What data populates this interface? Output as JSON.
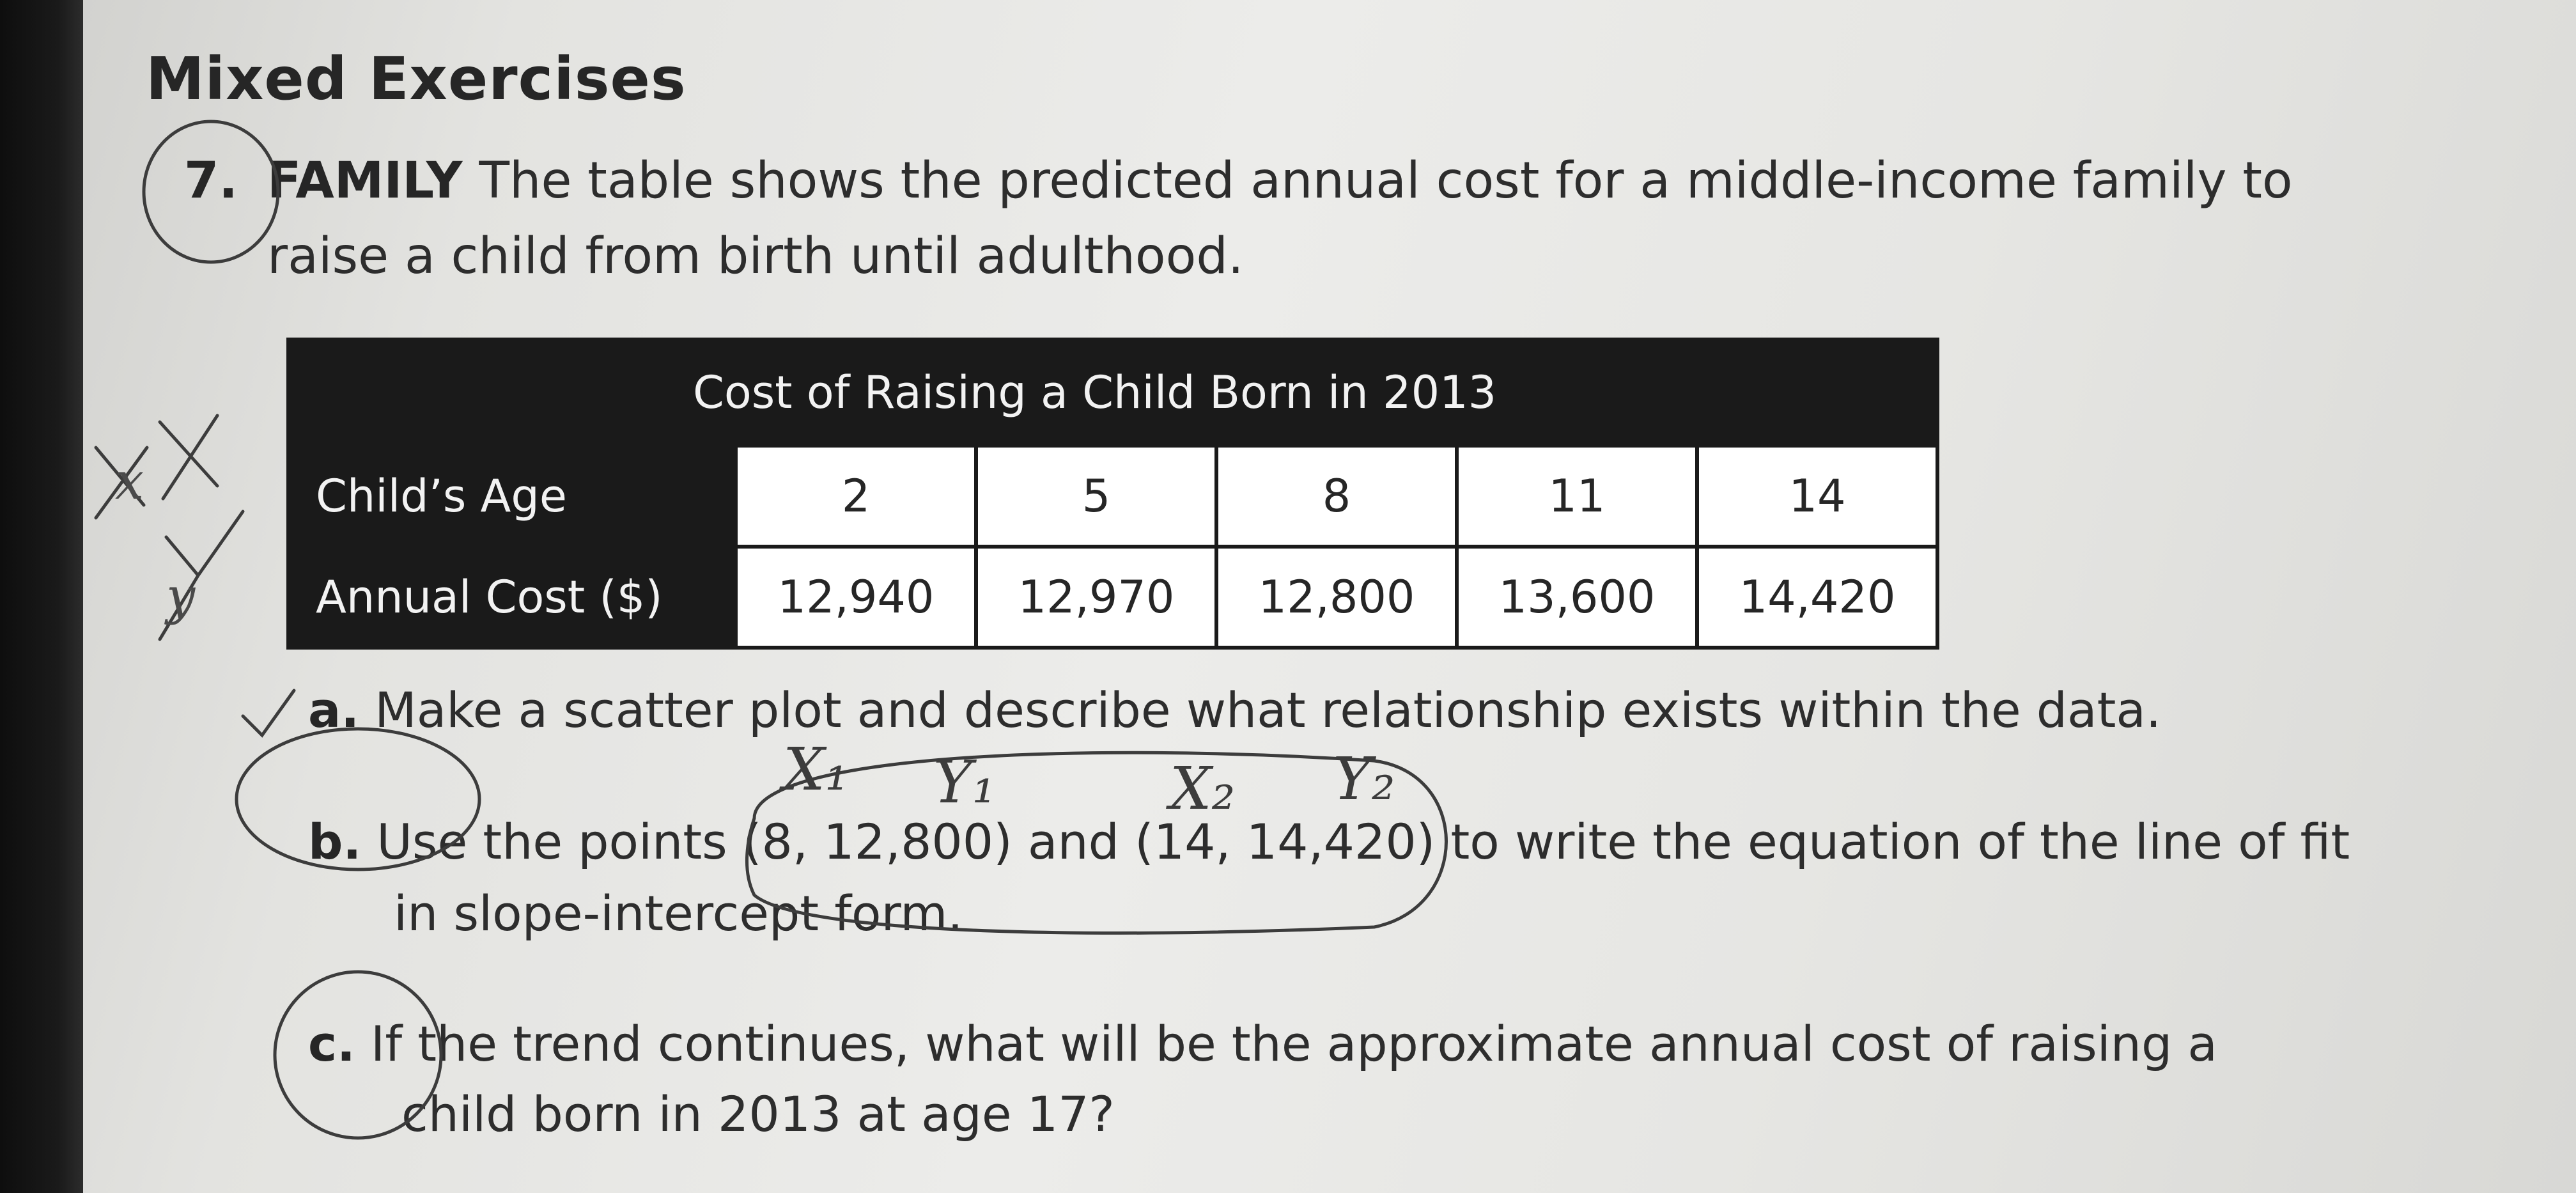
{
  "section": {
    "heading": "Mixed Exercises"
  },
  "problem": {
    "number": "7.",
    "topic": "FAMILY",
    "text_line1": "The table shows the predicted annual cost for a middle-income family to",
    "text_line2": "raise a child from birth until adulthood."
  },
  "table": {
    "caption": "Cost of Raising a Child Born in 2013",
    "rows": [
      {
        "header": "Child’s Age",
        "cells": [
          "2",
          "5",
          "8",
          "11",
          "14"
        ]
      },
      {
        "header": "Annual Cost ($)",
        "cells": [
          "12,940",
          "12,970",
          "12,800",
          "13,600",
          "14,420"
        ]
      }
    ]
  },
  "parts": {
    "a": {
      "letter": "a.",
      "line1": "Make a scatter plot and describe what relationship exists within the data."
    },
    "b": {
      "letter": "b.",
      "line1": "Use the points (8, 12,800) and (14, 14,420) to write the equation of the line of fit",
      "line2": "in slope-intercept form."
    },
    "c": {
      "letter": "c.",
      "line1": "If the trend continues, what will be the approximate annual cost of raising a",
      "line2": "child born in 2013 at age 17?"
    }
  },
  "handwriting": {
    "label_x1": "X₁",
    "label_y1": "Y₁",
    "label_x2": "X₂",
    "label_y2": "Y₂",
    "margin_labels": [
      "x",
      "y"
    ]
  }
}
